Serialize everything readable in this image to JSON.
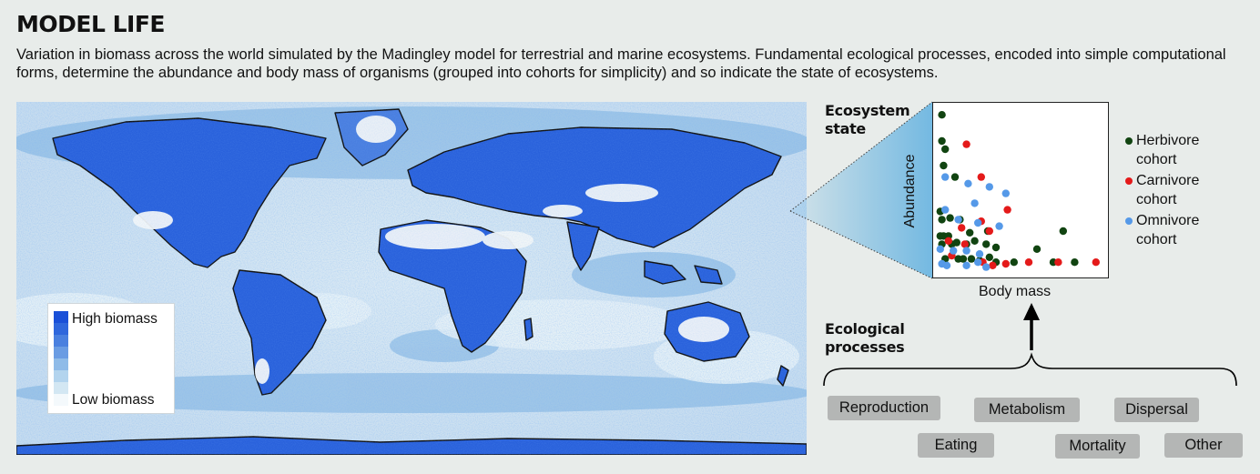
{
  "title": "MODEL LIFE",
  "subtitle": "Variation in biomass across the world simulated by the Madingley model for terrestrial and marine ecosystems. Fundamental ecological processes, encoded into simple computational forms, determine the abundance and body mass of organisms (grouped into cohorts for simplicity) and so indicate the state of ecosystems.",
  "map": {
    "legend": {
      "high": "High biomass",
      "low": "Low biomass"
    },
    "colors": {
      "high": "#1a50d8",
      "mid": "#5a95dc",
      "low": "#e6f1f6",
      "coast": "#111111"
    }
  },
  "ecosystem_state": {
    "heading_line1": "Ecosystem",
    "heading_line2": "state"
  },
  "ecological_processes": {
    "heading_line1": "Ecological",
    "heading_line2": "processes",
    "items": [
      "Reproduction",
      "Metabolism",
      "Dispersal",
      "Eating",
      "Mortality",
      "Other"
    ]
  },
  "chart_data": {
    "type": "scatter",
    "xlabel": "Body mass",
    "ylabel": "Abundance",
    "series": [
      {
        "name": "Herbivore cohort",
        "color": "#114411",
        "points": [
          [
            2,
            96
          ],
          [
            2,
            80
          ],
          [
            4,
            75
          ],
          [
            3,
            65
          ],
          [
            10,
            58
          ],
          [
            1,
            37
          ],
          [
            2,
            32
          ],
          [
            7,
            33
          ],
          [
            13,
            32
          ],
          [
            1,
            22
          ],
          [
            3,
            22
          ],
          [
            6,
            22
          ],
          [
            19,
            24
          ],
          [
            30,
            25
          ],
          [
            2,
            17
          ],
          [
            8,
            17
          ],
          [
            11,
            18
          ],
          [
            17,
            17
          ],
          [
            22,
            19
          ],
          [
            29,
            17
          ],
          [
            35,
            15
          ],
          [
            76,
            25
          ],
          [
            4,
            8
          ],
          [
            12,
            8
          ],
          [
            15,
            8
          ],
          [
            20,
            8
          ],
          [
            25,
            7
          ],
          [
            31,
            9
          ],
          [
            35,
            6
          ],
          [
            46,
            6
          ],
          [
            60,
            14
          ],
          [
            70,
            6
          ],
          [
            83,
            6
          ]
        ]
      },
      {
        "name": "Carnivore cohort",
        "color": "#e41a1a",
        "points": [
          [
            17,
            78
          ],
          [
            26,
            58
          ],
          [
            14,
            27
          ],
          [
            26,
            31
          ],
          [
            31,
            25
          ],
          [
            42,
            38
          ],
          [
            6,
            19
          ],
          [
            16,
            17
          ],
          [
            8,
            10
          ],
          [
            27,
            6
          ],
          [
            33,
            4
          ],
          [
            41,
            5
          ],
          [
            55,
            6
          ],
          [
            73,
            6
          ],
          [
            96,
            6
          ]
        ]
      },
      {
        "name": "Omnivore cohort",
        "color": "#5599e8",
        "points": [
          [
            4,
            58
          ],
          [
            18,
            54
          ],
          [
            31,
            52
          ],
          [
            41,
            48
          ],
          [
            22,
            42
          ],
          [
            4,
            38
          ],
          [
            12,
            32
          ],
          [
            24,
            30
          ],
          [
            37,
            28
          ],
          [
            1,
            14
          ],
          [
            9,
            13
          ],
          [
            17,
            13
          ],
          [
            25,
            11
          ],
          [
            2,
            5
          ],
          [
            5,
            4
          ],
          [
            17,
            4
          ],
          [
            24,
            6
          ],
          [
            29,
            3
          ]
        ]
      }
    ]
  }
}
